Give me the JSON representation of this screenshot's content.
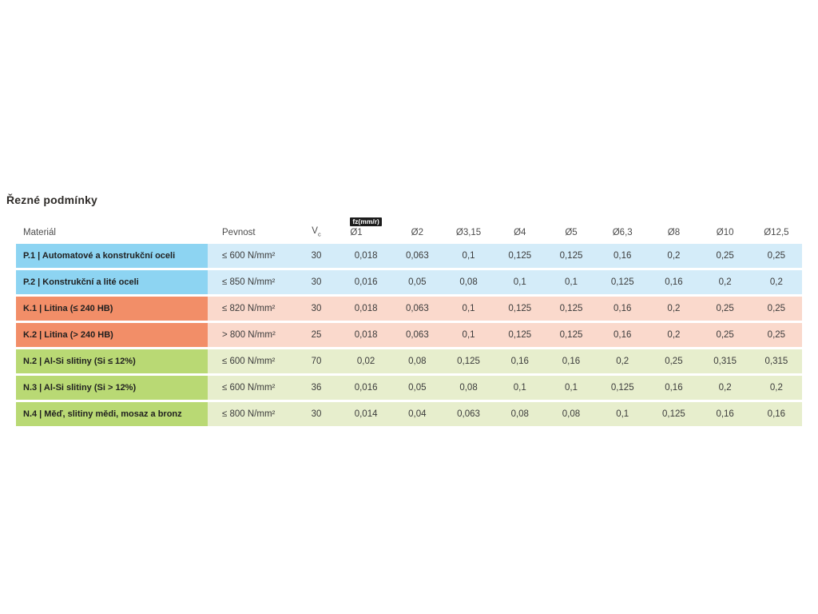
{
  "page": {
    "title": "Řezné podmínky"
  },
  "table": {
    "headers": {
      "material": "Materiál",
      "strength": "Pevnost",
      "vc_base": "V",
      "vc_sub": "c",
      "fz_badge": "fz(mm/r)",
      "diameters": [
        "Ø1",
        "Ø2",
        "Ø3,15",
        "Ø4",
        "Ø5",
        "Ø6,3",
        "Ø8",
        "Ø10",
        "Ø12,5"
      ]
    },
    "rows": [
      {
        "group": "p",
        "label": "P.1 | Automatové a konstrukční oceli",
        "strength": "≤ 600 N/mm²",
        "vc": "30",
        "fz": [
          "0,018",
          "0,063",
          "0,1",
          "0,125",
          "0,125",
          "0,16",
          "0,2",
          "0,25",
          "0,25"
        ]
      },
      {
        "group": "p",
        "label": "P.2 | Konstrukční a lité oceli",
        "strength": "≤ 850 N/mm²",
        "vc": "30",
        "fz": [
          "0,016",
          "0,05",
          "0,08",
          "0,1",
          "0,1",
          "0,125",
          "0,16",
          "0,2",
          "0,2"
        ]
      },
      {
        "group": "k",
        "label": "K.1 | Litina (≤ 240 HB)",
        "strength": "≤ 820 N/mm²",
        "vc": "30",
        "fz": [
          "0,018",
          "0,063",
          "0,1",
          "0,125",
          "0,125",
          "0,16",
          "0,2",
          "0,25",
          "0,25"
        ]
      },
      {
        "group": "k",
        "label": "K.2 | Litina (> 240 HB)",
        "strength": "> 800 N/mm²",
        "vc": "25",
        "fz": [
          "0,018",
          "0,063",
          "0,1",
          "0,125",
          "0,125",
          "0,16",
          "0,2",
          "0,25",
          "0,25"
        ]
      },
      {
        "group": "n",
        "label": "N.2 | Al-Si slitiny (Si ≤ 12%)",
        "strength": "≤ 600 N/mm²",
        "vc": "70",
        "fz": [
          "0,02",
          "0,08",
          "0,125",
          "0,16",
          "0,16",
          "0,2",
          "0,25",
          "0,315",
          "0,315"
        ]
      },
      {
        "group": "n",
        "label": "N.3 | Al-Si slitiny (Si > 12%)",
        "strength": "≤ 600 N/mm²",
        "vc": "36",
        "fz": [
          "0,016",
          "0,05",
          "0,08",
          "0,1",
          "0,1",
          "0,125",
          "0,16",
          "0,2",
          "0,2"
        ]
      },
      {
        "group": "n",
        "label": "N.4 | Měď, slitiny mědi, mosaz a bronz",
        "strength": "≤ 800 N/mm²",
        "vc": "30",
        "fz": [
          "0,014",
          "0,04",
          "0,063",
          "0,08",
          "0,08",
          "0,1",
          "0,125",
          "0,16",
          "0,16"
        ]
      }
    ],
    "colors": {
      "blue_dark": "#8dd4f2",
      "blue_light": "#d4ecf9",
      "salmon_dark": "#f28e68",
      "salmon_light": "#fad9cc",
      "green_dark": "#b9d974",
      "green_light": "#e7eecd",
      "badge_bg": "#1c1c1c",
      "badge_fg": "#ffffff"
    }
  }
}
